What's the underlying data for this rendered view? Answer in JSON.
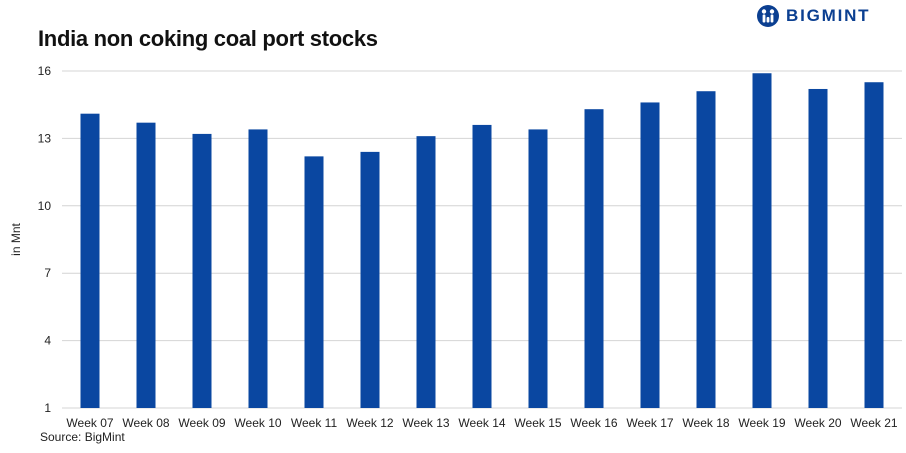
{
  "brand": {
    "name": "BIGMINT"
  },
  "source": "Source: BigMint",
  "colors": {
    "bar": "#0A47A1",
    "brand": "#0b3f91",
    "grid": "#d4d4d4"
  },
  "chart_data": {
    "type": "bar",
    "title": "India non coking coal port stocks",
    "xlabel": "",
    "ylabel": "in Mnt",
    "categories": [
      "Week 07",
      "Week 08",
      "Week 09",
      "Week 10",
      "Week 11",
      "Week 12",
      "Week 13",
      "Week 14",
      "Week 15",
      "Week 16",
      "Week 17",
      "Week 18",
      "Week 19",
      "Week 20",
      "Week 21"
    ],
    "series": [
      {
        "values": [
          14.1,
          13.7,
          13.2,
          13.4,
          12.2,
          12.4,
          13.1,
          13.6,
          13.4,
          14.3,
          14.6,
          15.1,
          15.9,
          15.2,
          15.5
        ]
      }
    ],
    "ylim": [
      1,
      16
    ],
    "yticks": [
      1,
      4,
      7,
      10,
      13,
      16
    ],
    "grid": true,
    "legend": "none"
  }
}
